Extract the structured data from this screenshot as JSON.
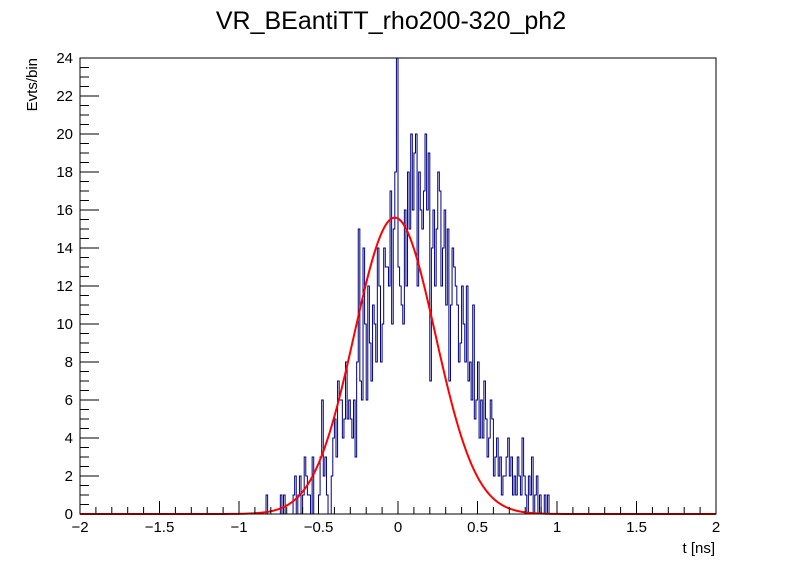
{
  "chart_data": {
    "type": "histogram",
    "title": "VR_BEantiTT_rho200-320_ph2",
    "xlabel": "t [ns]",
    "ylabel": "Evts/bin",
    "xlim": [
      -2,
      2
    ],
    "ylim": [
      0,
      24
    ],
    "grid": false,
    "x_ticks": [
      -2,
      -1.5,
      -1,
      -0.5,
      0,
      0.5,
      1,
      1.5,
      2
    ],
    "x_tick_labels": [
      "−2",
      "−1.5",
      "−1",
      "−0.5",
      "0",
      "0.5",
      "1",
      "1.5",
      "2"
    ],
    "y_ticks": [
      0,
      2,
      4,
      6,
      8,
      10,
      12,
      14,
      16,
      18,
      20,
      22,
      24
    ],
    "y_tick_labels": [
      "0",
      "2",
      "4",
      "6",
      "8",
      "10",
      "12",
      "14",
      "16",
      "18",
      "20",
      "22",
      "24"
    ],
    "series": [
      {
        "kind": "histogram",
        "color": "#000080",
        "bin_start": -2,
        "bin_width": 0.01,
        "counts": [
          0,
          0,
          0,
          0,
          0,
          0,
          0,
          0,
          0,
          0,
          0,
          0,
          0,
          0,
          0,
          0,
          0,
          0,
          0,
          0,
          0,
          0,
          0,
          0,
          0,
          0,
          0,
          0,
          0,
          0,
          0,
          0,
          0,
          0,
          0,
          0,
          0,
          0,
          0,
          0,
          0,
          0,
          0,
          0,
          0,
          0,
          0,
          0,
          0,
          0,
          0,
          0,
          0,
          0,
          0,
          0,
          0,
          0,
          0,
          0,
          0,
          0,
          0,
          0,
          0,
          0,
          0,
          0,
          0,
          0,
          0,
          0,
          0,
          0,
          0,
          0,
          0,
          0,
          0,
          0,
          0,
          0,
          0,
          0,
          0,
          0,
          0,
          0,
          0,
          0,
          0,
          0,
          0,
          0,
          0,
          0,
          0,
          0,
          0,
          0,
          0,
          0,
          0,
          0,
          0,
          0,
          0,
          0,
          0,
          0,
          0,
          0,
          0,
          0,
          0,
          0,
          0,
          1,
          0,
          0,
          0,
          0,
          0,
          0,
          0,
          0,
          1,
          0,
          1,
          0,
          0,
          0,
          0,
          0,
          1,
          2,
          0,
          1,
          2,
          0,
          1,
          3,
          2,
          1,
          1,
          0,
          3,
          0,
          0,
          0,
          1,
          3,
          6,
          2,
          3,
          1,
          0,
          0,
          2,
          4,
          5,
          3,
          7,
          6,
          6,
          4,
          5,
          8,
          5,
          6,
          5,
          4,
          6,
          3,
          8,
          15,
          7,
          6,
          14,
          10,
          6,
          12,
          9,
          7,
          11,
          10,
          8,
          14,
          12,
          8,
          10,
          14,
          13,
          13,
          12,
          17,
          10,
          15,
          18,
          24,
          13,
          12,
          11,
          10,
          16,
          12,
          18,
          15,
          20,
          16,
          19,
          20,
          12,
          18,
          16,
          15,
          17,
          20,
          16,
          19,
          7,
          14,
          16,
          12,
          15,
          18,
          17,
          12,
          14,
          16,
          11,
          15,
          7,
          11,
          14,
          13,
          12,
          11,
          8,
          9,
          12,
          10,
          8,
          12,
          7,
          8,
          6,
          11,
          5,
          6,
          8,
          4,
          6,
          4,
          7,
          5,
          3,
          4,
          6,
          5,
          2,
          3,
          4,
          2,
          3,
          1,
          2,
          2,
          3,
          4,
          2,
          3,
          1,
          2,
          1,
          3,
          2,
          1,
          4,
          2,
          1,
          0,
          2,
          1,
          3,
          0,
          1,
          2,
          0,
          1,
          0,
          0,
          1,
          0,
          1,
          0,
          0,
          0,
          0,
          0,
          0,
          0,
          0,
          0,
          0,
          0,
          0,
          0,
          0,
          0,
          0,
          0,
          0,
          0,
          0,
          0,
          0,
          0,
          0,
          0,
          0,
          0,
          0,
          0,
          0,
          0,
          0,
          0,
          0,
          0,
          0,
          0,
          0,
          0,
          0,
          0,
          0,
          0,
          0,
          0,
          0,
          0,
          0,
          0,
          0,
          0,
          0,
          0,
          0,
          0,
          0,
          0,
          0,
          0,
          0,
          0,
          0,
          0,
          0,
          0,
          0,
          0,
          0,
          0,
          0,
          0,
          0,
          0,
          0,
          0,
          0,
          0,
          0,
          0,
          0,
          0,
          0,
          0,
          0,
          0,
          0,
          0,
          0,
          0,
          0,
          0,
          0,
          0,
          0,
          0,
          0,
          0,
          0,
          0,
          0,
          0,
          0,
          0,
          0,
          0
        ]
      },
      {
        "kind": "fit-curve",
        "shape": "gaussian",
        "color": "#ff0000",
        "amplitude": 15.6,
        "mean": -0.02,
        "sigma": 0.255
      }
    ]
  }
}
